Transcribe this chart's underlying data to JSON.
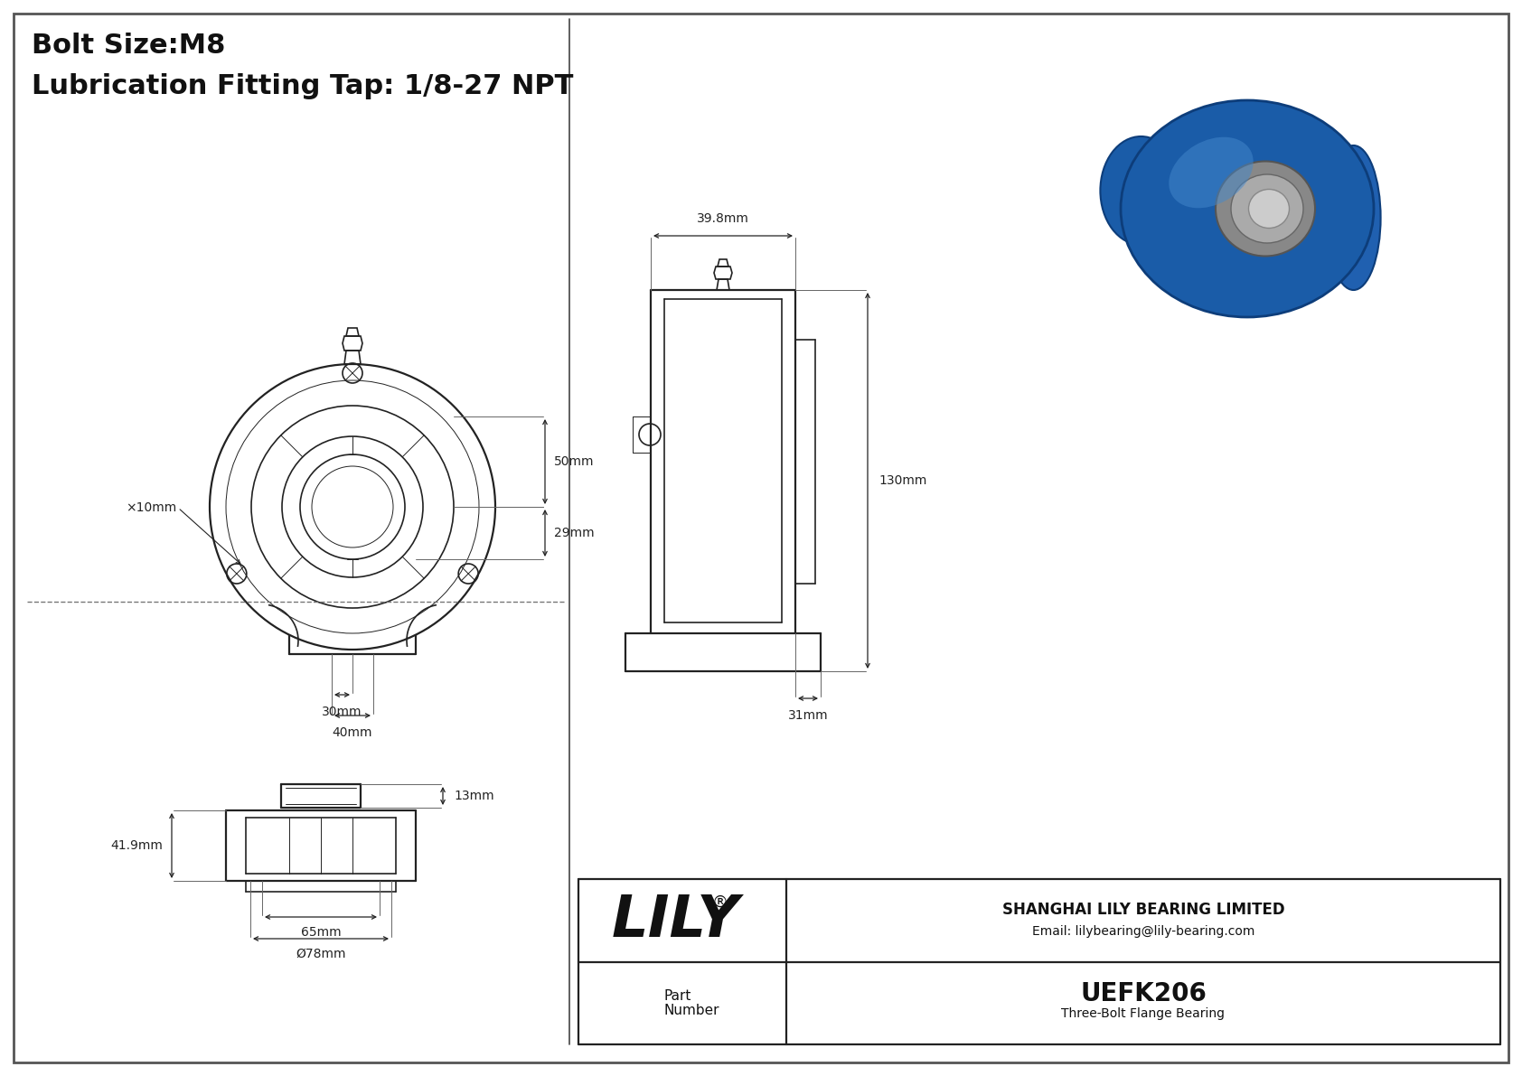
{
  "bg_color": "#ffffff",
  "line_color": "#222222",
  "dim_color": "#222222",
  "title_line1": "Bolt Size:M8",
  "title_line2": "Lubrication Fitting Tap: 1/8-27 NPT",
  "dim_phi10": "×10mm",
  "dim_50mm": "50mm",
  "dim_29mm": "29mm",
  "dim_30mm": "30mm",
  "dim_40mm": "40mm",
  "dim_39_8mm": "39.8mm",
  "dim_130mm": "130mm",
  "dim_31mm": "31mm",
  "dim_13mm": "13mm",
  "dim_41_9mm": "41.9mm",
  "dim_65mm": "65mm",
  "dim_78mm": "Ø78mm",
  "part_number": "UEFK206",
  "part_desc": "Three-Bolt Flange Bearing",
  "company": "SHANGHAI LILY BEARING LIMITED",
  "email": "Email: lilybearing@lily-bearing.com",
  "lily_brand": "LILY",
  "lily_reg": "®",
  "part_label_top": "Part",
  "part_label_bot": "Number"
}
